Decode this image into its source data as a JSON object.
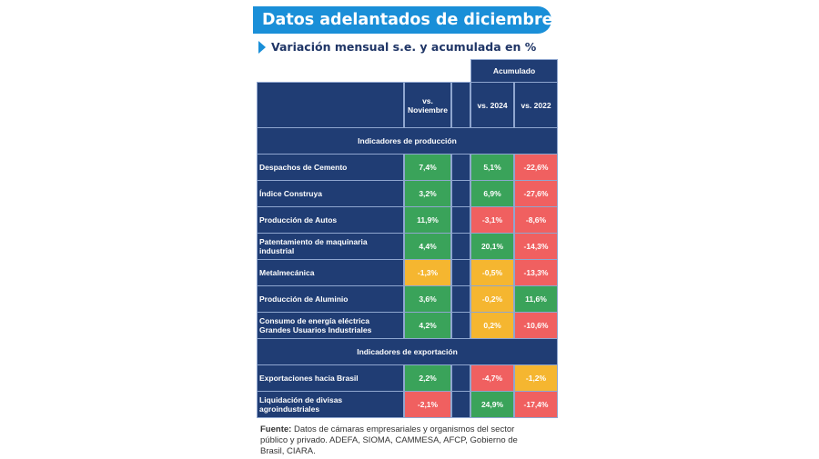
{
  "title": "Datos adelantados de diciembre",
  "subtitle": "Variación mensual s.e. y acumulada en %",
  "table": {
    "group_header": "Acumulado",
    "columns": [
      "vs. Noviembre",
      "vs. 2024",
      "vs. 2022"
    ],
    "sections": [
      {
        "title": "Indicadores de producción",
        "rows": [
          {
            "label": "Despachos de Cemento",
            "values": [
              "7,4%",
              "5,1%",
              "-22,6%"
            ],
            "status": [
              "green",
              "green",
              "red"
            ]
          },
          {
            "label": "Índice Construya",
            "values": [
              "3,2%",
              "6,9%",
              "-27,6%"
            ],
            "status": [
              "green",
              "green",
              "red"
            ]
          },
          {
            "label": "Producción de Autos",
            "values": [
              "11,9%",
              "-3,1%",
              "-8,6%"
            ],
            "status": [
              "green",
              "red",
              "red"
            ]
          },
          {
            "label": "Patentamiento de maquinaria industrial",
            "values": [
              "4,4%",
              "20,1%",
              "-14,3%"
            ],
            "status": [
              "green",
              "green",
              "red"
            ]
          },
          {
            "label": "Metalmecánica",
            "values": [
              "-1,3%",
              "-0,5%",
              "-13,3%"
            ],
            "status": [
              "orange",
              "orange",
              "red"
            ]
          },
          {
            "label": "Producción de Aluminio",
            "values": [
              "3,6%",
              "-0,2%",
              "11,6%"
            ],
            "status": [
              "green",
              "orange",
              "green"
            ]
          },
          {
            "label": "Consumo de energía eléctrica Grandes Usuarios Industriales",
            "values": [
              "4,2%",
              "0,2%",
              "-10,6%"
            ],
            "status": [
              "green",
              "orange",
              "red"
            ]
          }
        ]
      },
      {
        "title": "Indicadores de exportación",
        "rows": [
          {
            "label": "Exportaciones hacia Brasil",
            "values": [
              "2,2%",
              "-4,7%",
              "-1,2%"
            ],
            "status": [
              "green",
              "red",
              "orange"
            ]
          },
          {
            "label": "Liquidación de divisas agroindustriales",
            "values": [
              "-2,1%",
              "24,9%",
              "-17,4%"
            ],
            "status": [
              "red",
              "green",
              "red"
            ]
          }
        ]
      }
    ]
  },
  "footer": {
    "label": "Fuente:",
    "text": " Datos de cámaras empresariales y organismos del sector público y privado. ADEFA, SIOMA, CAMMESA, AFCP, Gobierno de Brasil, CIARA."
  },
  "colors": {
    "navy": "#203d74",
    "accent": "#1a8fd8",
    "green": "#3aa35a",
    "red": "#f06060",
    "orange": "#f5b630"
  }
}
